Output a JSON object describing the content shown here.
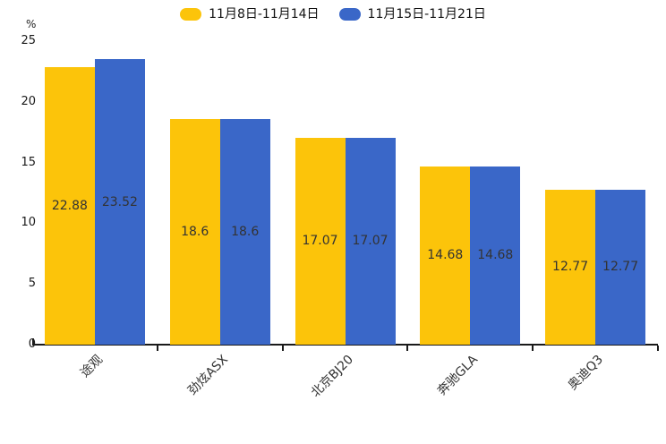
{
  "chart_data": {
    "type": "bar",
    "title": "",
    "unit": "%",
    "xlabel": "",
    "ylabel": "%",
    "categories": [
      "途观",
      "劲炫ASX",
      "北京BJ20",
      "奔驰GLA",
      "奥迪Q3"
    ],
    "series": [
      {
        "name": "11月8日-11月14日",
        "color": "#FCC40A",
        "values": [
          22.88,
          18.6,
          17.07,
          14.68,
          12.77
        ]
      },
      {
        "name": "11月15日-11月21日",
        "color": "#3A67C8",
        "values": [
          23.52,
          18.6,
          17.07,
          14.68,
          12.77
        ]
      }
    ],
    "yticks": [
      0,
      5,
      10,
      15,
      20,
      25
    ],
    "ylim": [
      0,
      25
    ],
    "grid": false,
    "legend_position": "top-center",
    "value_labels": "inside-middle",
    "axis_color": "#1a1a1a",
    "value_label_color": "#333333",
    "x_label_rotation_deg": -45
  }
}
